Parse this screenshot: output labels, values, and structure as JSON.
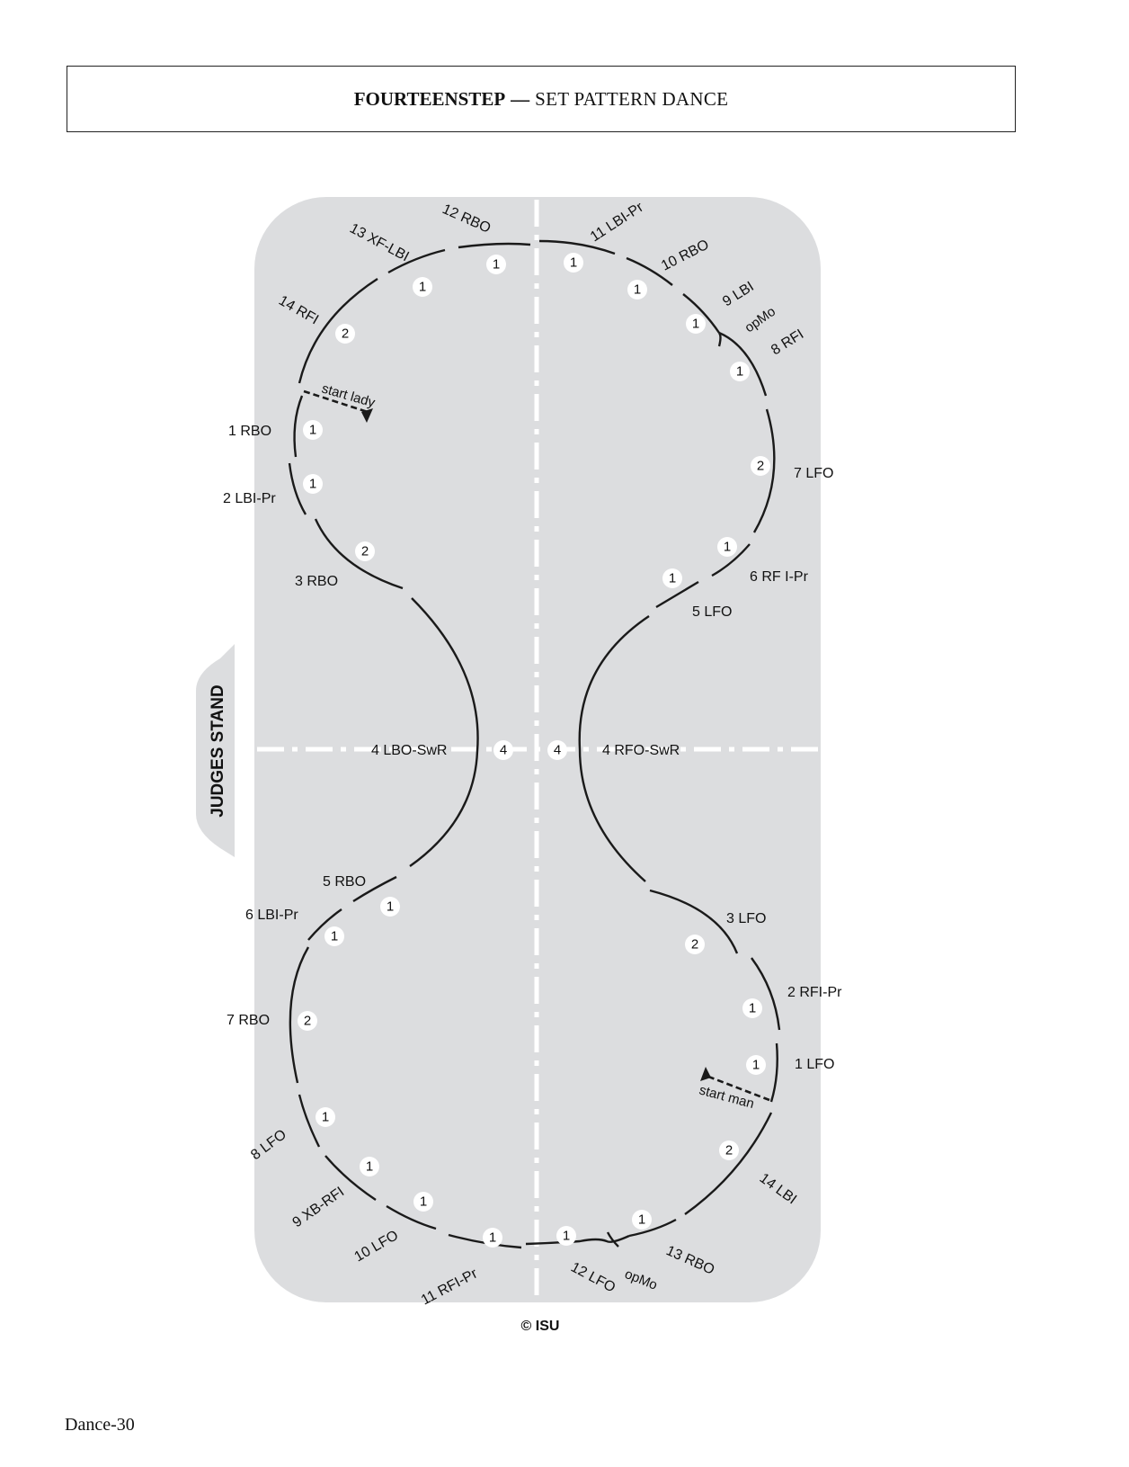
{
  "header": {
    "title_bold": "FOURTEENSTEP",
    "dash": "—",
    "title_sub": "SET PATTERN DANCE"
  },
  "judges_stand": "JUDGES STAND",
  "copyright": "© ISU",
  "page_label": "Dance-30",
  "start_lady": "start lady",
  "start_man": "start man",
  "lady_steps": [
    {
      "label": "1 RBO",
      "beats": "1"
    },
    {
      "label": "2 LBI-Pr",
      "beats": "1"
    },
    {
      "label": "3 RBO",
      "beats": "2"
    },
    {
      "label": "4 LBO-SwR",
      "beats": "4"
    },
    {
      "label": "5 RBO",
      "beats": "1"
    },
    {
      "label": "6 LBI-Pr",
      "beats": "1"
    },
    {
      "label": "7 RBO",
      "beats": "2"
    },
    {
      "label": "8 LFO",
      "beats": "1"
    },
    {
      "label": "9 XB-RFI",
      "beats": "1"
    },
    {
      "label": "10 LFO",
      "beats": "1"
    },
    {
      "label": "11 RFI-Pr",
      "beats": "1"
    },
    {
      "label": "12 RBO",
      "beats": "1"
    },
    {
      "label": "13 XF-LBI",
      "beats": "1"
    },
    {
      "label": "14 RFI",
      "beats": "2"
    }
  ],
  "man_steps": [
    {
      "label": "1 LFO",
      "beats": "1"
    },
    {
      "label": "2 RFI-Pr",
      "beats": "1"
    },
    {
      "label": "3 LFO",
      "beats": "2"
    },
    {
      "label": "4 RFO-SwR",
      "beats": "4"
    },
    {
      "label": "5 LFO",
      "beats": "1"
    },
    {
      "label": "6 RF I-Pr",
      "beats": "1"
    },
    {
      "label": "7 LFO",
      "beats": "2"
    },
    {
      "label": "8 RFI",
      "beats": "1"
    },
    {
      "label": "9 LBI",
      "beats": "1"
    },
    {
      "label": "10 RBO",
      "beats": "1"
    },
    {
      "label": "11 LBI-Pr",
      "beats": "1"
    },
    {
      "label": "12 LFO",
      "beats": "1"
    },
    {
      "label": "13 RBO",
      "beats": "1"
    },
    {
      "label": "14 LBI",
      "beats": "2"
    }
  ],
  "opmo": "opMo",
  "colors": {
    "rink": "#dcdddf",
    "line": "#1a1a1a",
    "axis": "#ffffff"
  }
}
